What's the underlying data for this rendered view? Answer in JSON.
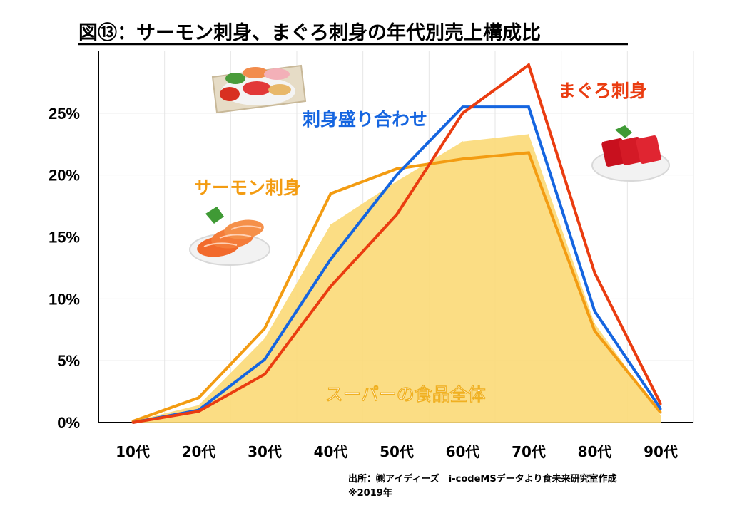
{
  "chart_data": {
    "type": "line",
    "title": "図⑬：サーモン刺身、まぐろ刺身の年代別売上構成比",
    "categories": [
      "10代",
      "20代",
      "30代",
      "40代",
      "50代",
      "60代",
      "70代",
      "80代",
      "90代"
    ],
    "ylim": [
      0,
      30
    ],
    "yticks": [
      0,
      5,
      10,
      15,
      20,
      25
    ],
    "ytick_labels": [
      "0%",
      "5%",
      "10%",
      "15%",
      "20%",
      "25%"
    ],
    "grid": true,
    "series": [
      {
        "name": "スーパーの食品全体",
        "kind": "area",
        "color": "#fbd977",
        "values": [
          0.1,
          1.4,
          6.8,
          16.0,
          19.5,
          22.7,
          23.3,
          8.0,
          0.6
        ]
      },
      {
        "name": "サーモン刺身",
        "kind": "line",
        "color": "#f39c12",
        "values": [
          0.1,
          2.0,
          7.6,
          18.5,
          20.5,
          21.3,
          21.8,
          7.4,
          0.8
        ]
      },
      {
        "name": "刺身盛り合わせ",
        "kind": "line",
        "color": "#1565e0",
        "values": [
          0.0,
          1.0,
          5.1,
          13.2,
          20.0,
          25.5,
          25.5,
          9.0,
          1.1
        ]
      },
      {
        "name": "まぐろ刺身",
        "kind": "line",
        "color": "#ea3c10",
        "values": [
          0.0,
          0.9,
          3.9,
          11.0,
          16.8,
          25.0,
          28.9,
          12.1,
          1.5
        ]
      }
    ],
    "annotations": {
      "source": "出所：㈱アイディーズ　i-codeMSデータより食未来研究室作成",
      "year": "※2019年"
    }
  },
  "illustrations": {
    "platter": "sashimi-platter-icon",
    "tuna": "tuna-sashimi-icon",
    "salmon": "salmon-sashimi-icon"
  }
}
